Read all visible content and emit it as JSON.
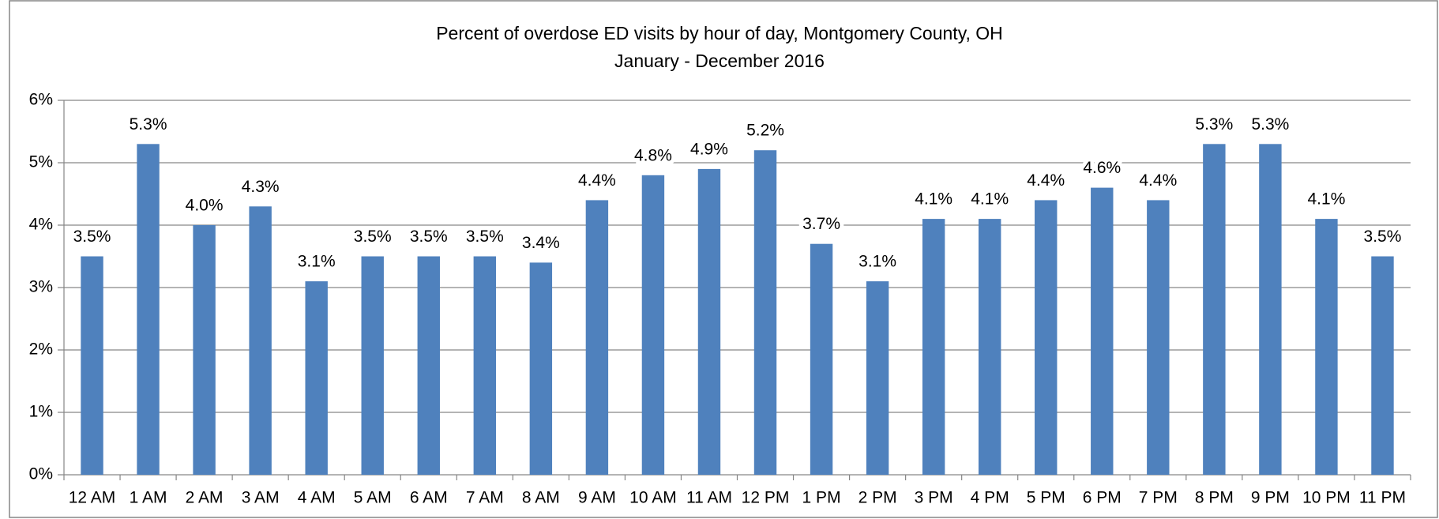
{
  "chart_data": {
    "type": "bar",
    "title": "Percent of overdose ED visits by hour of day, Montgomery County, OH",
    "subtitle": "January - December 2016",
    "categories": [
      "12 AM",
      "1 AM",
      "2 AM",
      "3 AM",
      "4 AM",
      "5 AM",
      "6 AM",
      "7 AM",
      "8 AM",
      "9 AM",
      "10 AM",
      "11 AM",
      "12 PM",
      "1 PM",
      "2 PM",
      "3 PM",
      "4 PM",
      "5 PM",
      "6 PM",
      "7 PM",
      "8 PM",
      "9 PM",
      "10 PM",
      "11 PM"
    ],
    "values": [
      3.5,
      5.3,
      4.0,
      4.3,
      3.1,
      3.5,
      3.5,
      3.5,
      3.4,
      4.4,
      4.8,
      4.9,
      5.2,
      3.7,
      3.1,
      4.1,
      4.1,
      4.4,
      4.6,
      4.4,
      5.3,
      5.3,
      4.1,
      3.5
    ],
    "value_labels": [
      "3.5%",
      "5.3%",
      "4.0%",
      "4.3%",
      "3.1%",
      "3.5%",
      "3.5%",
      "3.5%",
      "3.4%",
      "4.4%",
      "4.8%",
      "4.9%",
      "5.2%",
      "3.7%",
      "3.1%",
      "4.1%",
      "4.1%",
      "4.4%",
      "4.6%",
      "4.4%",
      "5.3%",
      "5.3%",
      "4.1%",
      "3.5%"
    ],
    "color": "#4f81bd",
    "ylim": [
      0,
      6
    ],
    "yticks": [
      {
        "value": 0,
        "label": "0%"
      },
      {
        "value": 1,
        "label": "1%"
      },
      {
        "value": 2,
        "label": "2%"
      },
      {
        "value": 3,
        "label": "3%"
      },
      {
        "value": 4,
        "label": "4%"
      },
      {
        "value": 5,
        "label": "5%"
      },
      {
        "value": 6,
        "label": "6%"
      }
    ],
    "grid": true
  }
}
